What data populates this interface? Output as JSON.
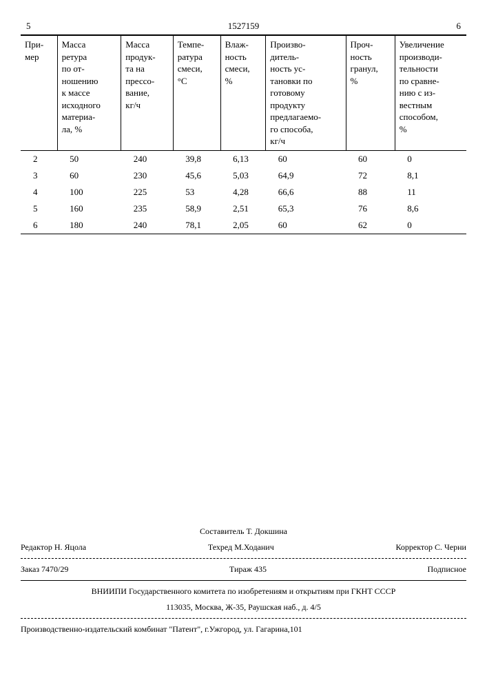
{
  "header": {
    "left_page": "5",
    "doc_number": "1527159",
    "right_page": "6"
  },
  "table": {
    "columns": [
      "При-\nмер",
      "Масса\nретура\nпо от-\nношению\nк массе\nисходного\nматериа-\nла, %",
      "Масса\nпродук-\nта на\nпрессо-\nвание,\nкг/ч",
      "Темпе-\nратура\nсмеси,\n°C",
      "Влаж-\nность\nсмеси,\n%",
      "Произво-\nдитель-\nность ус-\nтановки по\nготовому\nпродукту\nпредлагаемо-\nго способа,\nкг/ч",
      "Проч-\nность\nгранул,\n%",
      "Увеличение\nпроизводи-\nтельности\nпо сравне-\nнию с из-\nвестным\nспособом,\n%"
    ],
    "rows": [
      [
        "2",
        "50",
        "240",
        "39,8",
        "6,13",
        "60",
        "60",
        "0"
      ],
      [
        "3",
        "60",
        "230",
        "45,6",
        "5,03",
        "64,9",
        "72",
        "8,1"
      ],
      [
        "4",
        "100",
        "225",
        "53",
        "4,28",
        "66,6",
        "88",
        "11"
      ],
      [
        "5",
        "160",
        "235",
        "58,9",
        "2,51",
        "65,3",
        "76",
        "8,6"
      ],
      [
        "6",
        "180",
        "240",
        "78,1",
        "2,05",
        "60",
        "62",
        "0"
      ]
    ]
  },
  "footer": {
    "compiler": "Составитель Т. Докшина",
    "editor": "Редактор Н. Яцола",
    "techred": "Техред М.Ходанич",
    "corrector": "Корректор С. Черни",
    "order": "Заказ 7470/29",
    "tirazh": "Тираж 435",
    "podpisnoe": "Подписное",
    "org_line1": "ВНИИПИ Государственного комитета по изобретениям и открытиям при ГКНТ СССР",
    "org_line2": "113035, Москва, Ж-35, Раушская наб., д. 4/5",
    "pub_line": "Производственно-издательский комбинат \"Патент\", г.Ужгород, ул. Гагарина,101"
  }
}
